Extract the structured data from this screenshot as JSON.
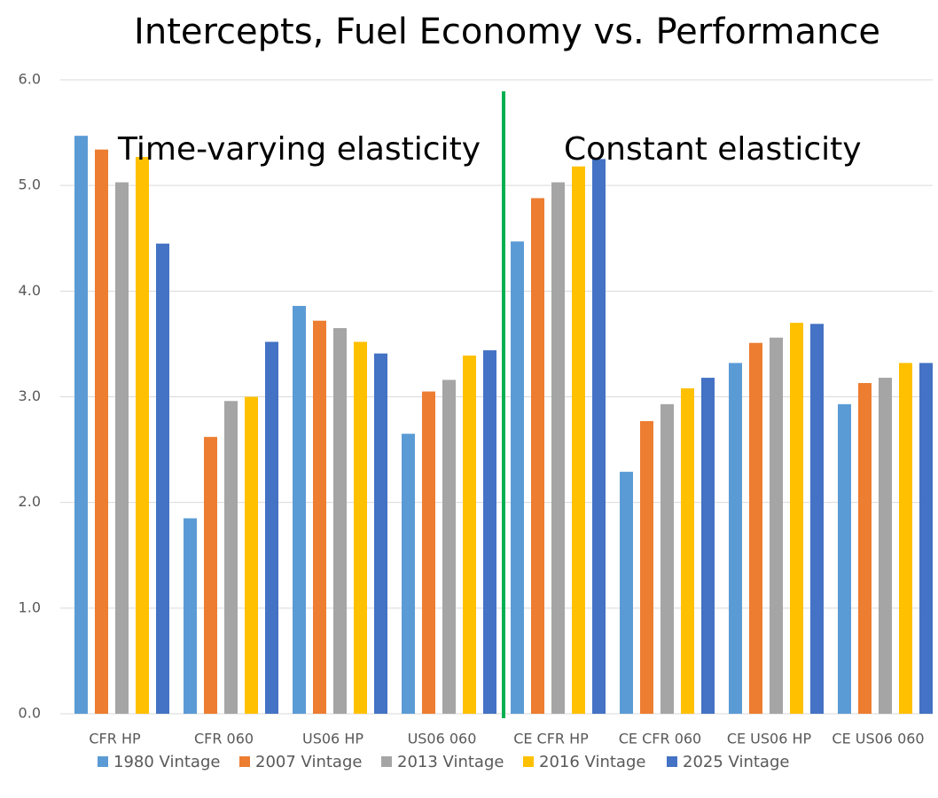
{
  "chart_data": {
    "type": "bar",
    "title": "Intercepts, Fuel Economy vs. Performance",
    "annotations": [
      "Time-varying elasticity",
      "Constant elasticity"
    ],
    "categories": [
      "CFR HP",
      "CFR 060",
      "US06 HP",
      "US06 060",
      "CE CFR HP",
      "CE CFR 060",
      "CE US06 HP",
      "CE US06 060"
    ],
    "series": [
      {
        "name": "1980 Vintage",
        "color": "#5b9bd5",
        "values": [
          5.47,
          1.85,
          3.86,
          2.65,
          4.47,
          2.29,
          3.32,
          2.93
        ]
      },
      {
        "name": "2007 Vintage",
        "color": "#ed7d31",
        "values": [
          5.34,
          2.62,
          3.72,
          3.05,
          4.88,
          2.77,
          3.51,
          3.13
        ]
      },
      {
        "name": "2013 Vintage",
        "color": "#a5a5a5",
        "values": [
          5.03,
          2.96,
          3.65,
          3.16,
          5.03,
          2.93,
          3.56,
          3.18
        ]
      },
      {
        "name": "2016 Vintage",
        "color": "#ffc000",
        "values": [
          5.27,
          3.0,
          3.52,
          3.39,
          5.18,
          3.08,
          3.7,
          3.32
        ]
      },
      {
        "name": "2025 Vintage",
        "color": "#4472c4",
        "values": [
          4.45,
          3.52,
          3.41,
          3.44,
          5.25,
          3.18,
          3.69,
          3.32
        ]
      }
    ],
    "ylim": [
      0,
      6
    ],
    "yticks": [
      {
        "value": 0,
        "label": "0.0"
      },
      {
        "value": 1,
        "label": "1.0"
      },
      {
        "value": 2,
        "label": "2.0"
      },
      {
        "value": 3,
        "label": "3.0"
      },
      {
        "value": 4,
        "label": "4.0"
      },
      {
        "value": 5,
        "label": "5.0"
      },
      {
        "value": 6,
        "label": "6.0"
      }
    ],
    "grid": true,
    "legend": "bottom"
  }
}
